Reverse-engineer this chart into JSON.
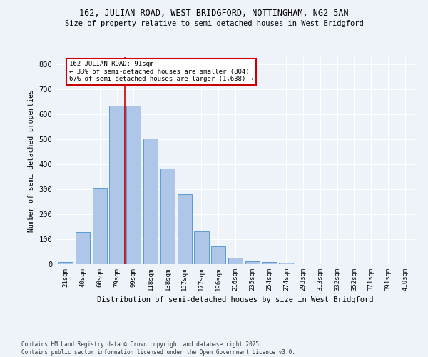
{
  "title1": "162, JULIAN ROAD, WEST BRIDGFORD, NOTTINGHAM, NG2 5AN",
  "title2": "Size of property relative to semi-detached houses in West Bridgford",
  "xlabel": "Distribution of semi-detached houses by size in West Bridgford",
  "ylabel": "Number of semi-detached properties",
  "footnote1": "Contains HM Land Registry data © Crown copyright and database right 2025.",
  "footnote2": "Contains public sector information licensed under the Open Government Licence v3.0.",
  "bar_labels": [
    "21sqm",
    "40sqm",
    "60sqm",
    "79sqm",
    "99sqm",
    "118sqm",
    "138sqm",
    "157sqm",
    "177sqm",
    "196sqm",
    "216sqm",
    "235sqm",
    "254sqm",
    "274sqm",
    "293sqm",
    "313sqm",
    "332sqm",
    "352sqm",
    "371sqm",
    "391sqm",
    "410sqm"
  ],
  "bar_values": [
    10,
    128,
    302,
    635,
    636,
    503,
    383,
    280,
    131,
    72,
    25,
    12,
    8,
    5,
    0,
    0,
    0,
    0,
    0,
    0,
    0
  ],
  "bar_color": "#aec6e8",
  "bar_edge_color": "#5b9bd5",
  "vline_color": "#cc0000",
  "annotation_text": "162 JULIAN ROAD: 91sqm\n← 33% of semi-detached houses are smaller (804)\n67% of semi-detached houses are larger (1,638) →",
  "annotation_box_color": "#cc0000",
  "background_color": "#eef2f9",
  "ylim": [
    0,
    830
  ],
  "yticks": [
    0,
    100,
    200,
    300,
    400,
    500,
    600,
    700,
    800
  ]
}
